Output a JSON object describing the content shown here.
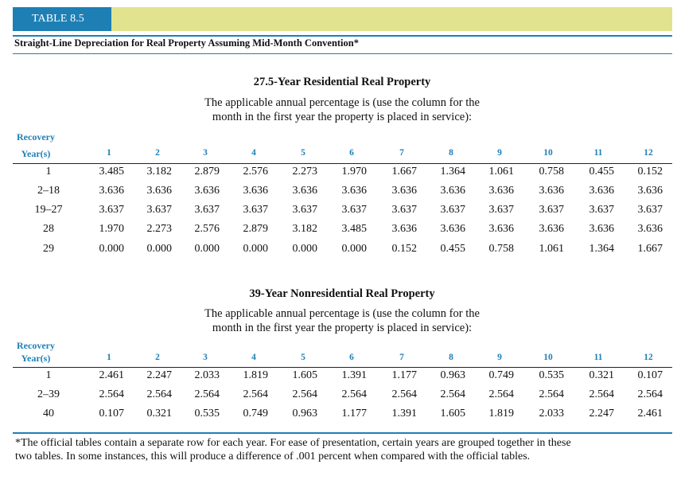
{
  "header": {
    "table_label": "TABLE 8.5",
    "subtitle": "Straight-Line Depreciation for Real Property Assuming Mid-Month Convention*"
  },
  "sections": [
    {
      "title": "27.5-Year Residential Real Property",
      "note_line1": "The applicable annual percentage is (use the column for the",
      "note_line2": "month in the first year the property is placed in service):",
      "recovery_label_1": "Recovery",
      "recovery_label_2": "Year(s)",
      "months": [
        "1",
        "2",
        "3",
        "4",
        "5",
        "6",
        "7",
        "8",
        "9",
        "10",
        "11",
        "12"
      ],
      "rows": [
        {
          "year": "1",
          "values": [
            "3.485",
            "3.182",
            "2.879",
            "2.576",
            "2.273",
            "1.970",
            "1.667",
            "1.364",
            "1.061",
            "0.758",
            "0.455",
            "0.152"
          ]
        },
        {
          "year": "2–18",
          "values": [
            "3.636",
            "3.636",
            "3.636",
            "3.636",
            "3.636",
            "3.636",
            "3.636",
            "3.636",
            "3.636",
            "3.636",
            "3.636",
            "3.636"
          ]
        },
        {
          "year": "19–27",
          "values": [
            "3.637",
            "3.637",
            "3.637",
            "3.637",
            "3.637",
            "3.637",
            "3.637",
            "3.637",
            "3.637",
            "3.637",
            "3.637",
            "3.637"
          ]
        },
        {
          "year": "28",
          "values": [
            "1.970",
            "2.273",
            "2.576",
            "2.879",
            "3.182",
            "3.485",
            "3.636",
            "3.636",
            "3.636",
            "3.636",
            "3.636",
            "3.636"
          ]
        },
        {
          "year": "29",
          "values": [
            "0.000",
            "0.000",
            "0.000",
            "0.000",
            "0.000",
            "0.000",
            "0.152",
            "0.455",
            "0.758",
            "1.061",
            "1.364",
            "1.667"
          ]
        }
      ]
    },
    {
      "title": "39-Year Nonresidential Real Property",
      "note_line1": "The applicable annual percentage is (use the column for the",
      "note_line2": "month in the first year the property is placed in service):",
      "recovery_label_1": "Recovery",
      "recovery_label_2": "Year(s)",
      "months": [
        "1",
        "2",
        "3",
        "4",
        "5",
        "6",
        "7",
        "8",
        "9",
        "10",
        "11",
        "12"
      ],
      "rows": [
        {
          "year": "1",
          "values": [
            "2.461",
            "2.247",
            "2.033",
            "1.819",
            "1.605",
            "1.391",
            "1.177",
            "0.963",
            "0.749",
            "0.535",
            "0.321",
            "0.107"
          ]
        },
        {
          "year": "2–39",
          "values": [
            "2.564",
            "2.564",
            "2.564",
            "2.564",
            "2.564",
            "2.564",
            "2.564",
            "2.564",
            "2.564",
            "2.564",
            "2.564",
            "2.564"
          ]
        },
        {
          "year": "40",
          "values": [
            "0.107",
            "0.321",
            "0.535",
            "0.749",
            "0.963",
            "1.177",
            "1.391",
            "1.605",
            "1.819",
            "2.033",
            "2.247",
            "2.461"
          ]
        }
      ]
    }
  ],
  "footnote_line1": "*The official tables contain a separate row for each year. For ease of presentation, certain years are grouped together in these",
  "footnote_line2": "two tables. In some instances, this will produce a difference of .001 percent when compared with the official tables.",
  "colors": {
    "accent_blue": "#1e7fb5",
    "header_band": "#e1e38f"
  }
}
